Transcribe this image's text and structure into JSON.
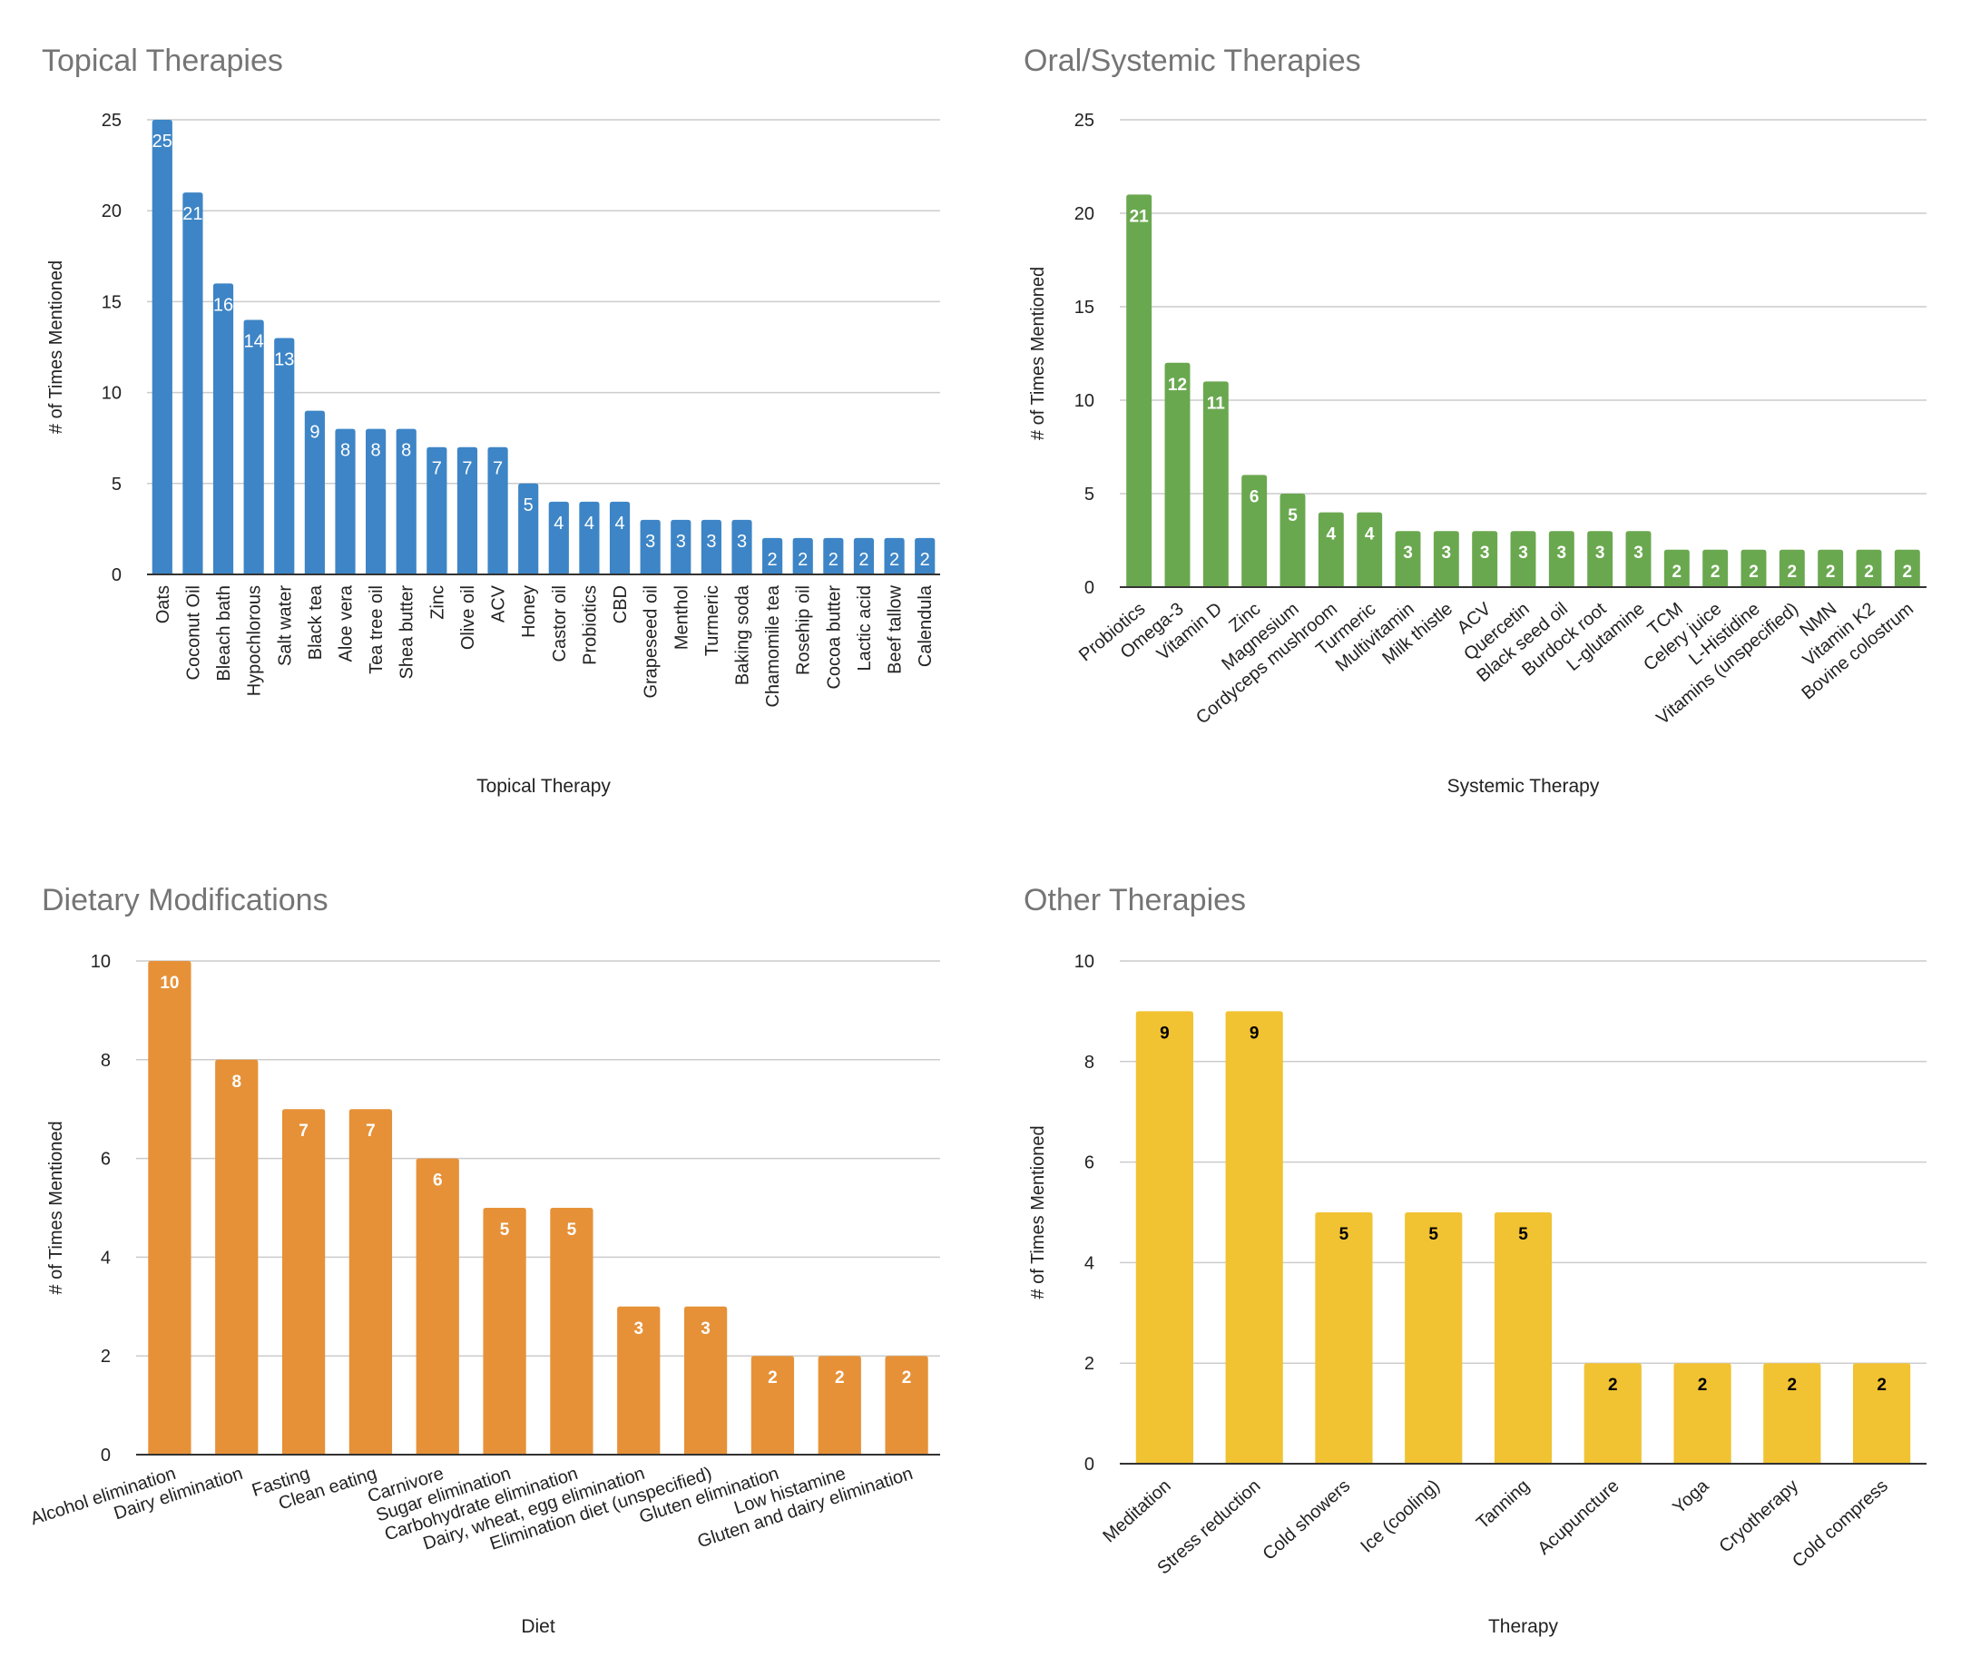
{
  "chart_data": [
    {
      "type": "bar",
      "title": "Topical Therapies",
      "xlabel": "Topical Therapy",
      "ylabel": "# of Times Mentioned",
      "ylim": [
        0,
        25
      ],
      "yticks": [
        0,
        5,
        10,
        15,
        20,
        25
      ],
      "grid": true,
      "color": "#3d85c6",
      "label_color": "#ffffff",
      "label_style": "normal",
      "tick_rotation": -90,
      "categories": [
        "Oats",
        "Coconut Oil",
        "Bleach bath",
        "Hypochlorous",
        "Salt water",
        "Black tea",
        "Aloe vera",
        "Tea tree oil",
        "Shea butter",
        "Zinc",
        "Olive oil",
        "ACV",
        "Honey",
        "Castor oil",
        "Probiotics",
        "CBD",
        "Grapeseed oil",
        "Menthol",
        "Turmeric",
        "Baking soda",
        "Chamomile tea",
        "Rosehip oil",
        "Cocoa butter",
        "Lactic acid",
        "Beef tallow",
        "Calendula"
      ],
      "values": [
        25,
        21,
        16,
        14,
        13,
        9,
        8,
        8,
        8,
        7,
        7,
        7,
        5,
        4,
        4,
        4,
        3,
        3,
        3,
        3,
        2,
        2,
        2,
        2,
        2,
        2
      ]
    },
    {
      "type": "bar",
      "title": "Oral/Systemic Therapies",
      "xlabel": "Systemic Therapy",
      "ylabel": "# of Times Mentioned",
      "ylim": [
        0,
        25
      ],
      "yticks": [
        0,
        5,
        10,
        15,
        20,
        25
      ],
      "grid": true,
      "color": "#6aa84f",
      "label_color": "#ffffff",
      "label_style": "bold",
      "tick_rotation": -40,
      "categories": [
        "Probiotics",
        "Omega-3",
        "Vitamin D",
        "Zinc",
        "Magnesium",
        "Cordyceps mushroom",
        "Turmeric",
        "Multivitamin",
        "Milk thistle",
        "ACV",
        "Quercetin",
        "Black seed oil",
        "Burdock root",
        "L-glutamine",
        "TCM",
        "Celery juice",
        "L-Histidine",
        "Vitamins (unspecified)",
        "NMN",
        "Vitamin K2",
        "Bovine colostrum"
      ],
      "values": [
        21,
        12,
        11,
        6,
        5,
        4,
        4,
        3,
        3,
        3,
        3,
        3,
        3,
        3,
        2,
        2,
        2,
        2,
        2,
        2,
        2
      ]
    },
    {
      "type": "bar",
      "title": "Dietary Modifications",
      "xlabel": "Diet",
      "ylabel": "# of Times Mentioned",
      "ylim": [
        0,
        10
      ],
      "yticks": [
        0,
        2,
        4,
        6,
        8,
        10
      ],
      "grid": true,
      "color": "#e69138",
      "label_color": "#ffffff",
      "label_style": "bold",
      "tick_rotation": -18,
      "categories": [
        "Alcohol elimination",
        "Dairy elimination",
        "Fasting",
        "Clean eating",
        "Carnivore",
        "Sugar elimination",
        "Carbohydrate elimination",
        "Dairy, wheat, egg elimination",
        "Elimination diet (unspecified)",
        "Gluten elimination",
        "Low histamine",
        "Gluten and dairy elimination"
      ],
      "values": [
        10,
        8,
        7,
        7,
        6,
        5,
        5,
        3,
        3,
        2,
        2,
        2
      ]
    },
    {
      "type": "bar",
      "title": "Other Therapies",
      "xlabel": "Therapy",
      "ylabel": "# of Times Mentioned",
      "ylim": [
        0,
        10
      ],
      "yticks": [
        0,
        2,
        4,
        6,
        8,
        10
      ],
      "grid": true,
      "color": "#f1c232",
      "label_color": "#000000",
      "label_style": "bold",
      "tick_rotation": -42,
      "categories": [
        "Meditation",
        "Stress reduction",
        "Cold showers",
        "Ice (cooling)",
        "Tanning",
        "Acupuncture",
        "Yoga",
        "Cryotherapy",
        "Cold compress"
      ],
      "values": [
        9,
        9,
        5,
        5,
        5,
        2,
        2,
        2,
        2
      ]
    }
  ]
}
